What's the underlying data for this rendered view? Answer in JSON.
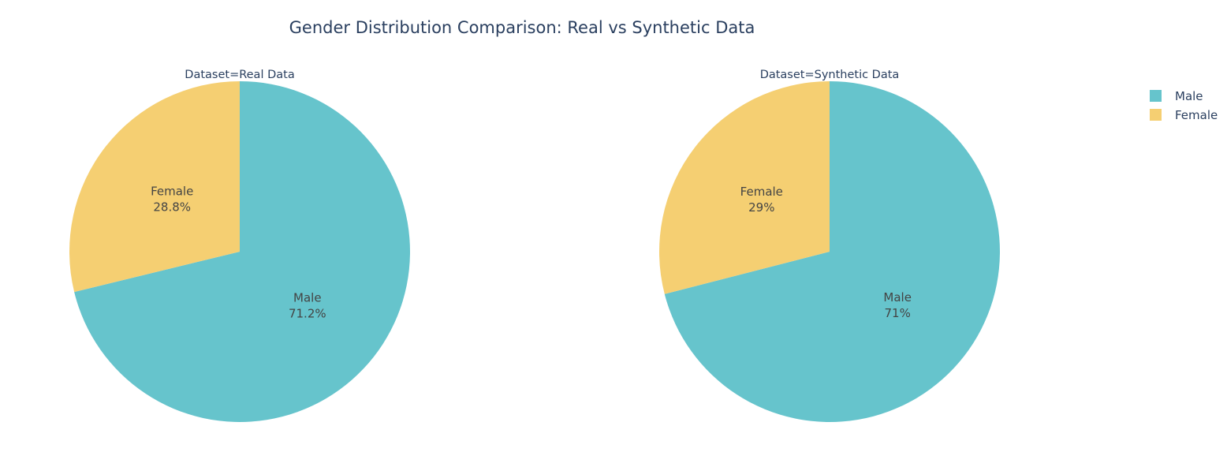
{
  "title": "Gender Distribution Comparison: Real vs Synthetic Data",
  "legend": {
    "placement": "top-right",
    "items": [
      {
        "name": "Male",
        "color": "#66c4cc"
      },
      {
        "name": "Female",
        "color": "#f5cf72"
      }
    ]
  },
  "chart_data": [
    {
      "type": "pie",
      "title": "Dataset=Real Data",
      "slices": [
        {
          "label": "Male",
          "value": 71.2,
          "text": "71.2%",
          "color": "#66c4cc"
        },
        {
          "label": "Female",
          "value": 28.8,
          "text": "28.8%",
          "color": "#f5cf72"
        }
      ]
    },
    {
      "type": "pie",
      "title": "Dataset=Synthetic Data",
      "slices": [
        {
          "label": "Male",
          "value": 71,
          "text": "71%",
          "color": "#66c4cc"
        },
        {
          "label": "Female",
          "value": 29,
          "text": "29%",
          "color": "#f5cf72"
        }
      ]
    }
  ]
}
